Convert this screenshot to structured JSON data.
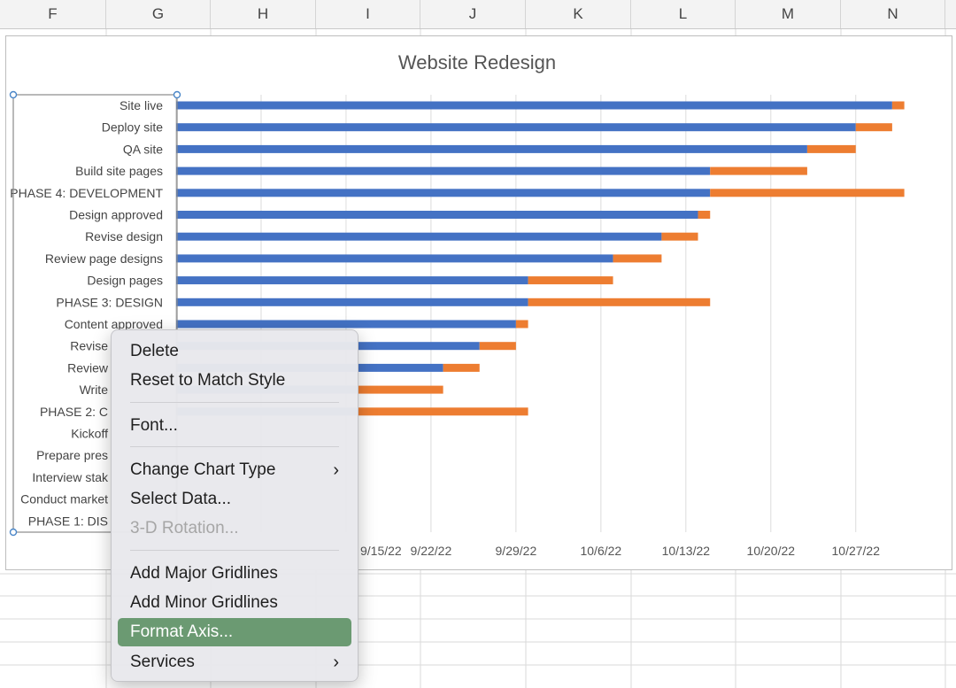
{
  "columns": [
    "F",
    "G",
    "H",
    "I",
    "J",
    "K",
    "L",
    "M",
    "N"
  ],
  "chart_data": {
    "type": "bar",
    "orientation": "horizontal-stacked-gantt",
    "title": "Website Redesign",
    "x_axis": {
      "min": "9/1/22",
      "tick_interval_days": 7,
      "tick_labels": [
        "9/15/22",
        "9/22/22",
        "9/29/22",
        "10/6/22",
        "10/13/22",
        "10/20/22",
        "10/27/22"
      ],
      "grid": true
    },
    "colors": {
      "start": "#4472c4",
      "duration": "#ed7d31"
    },
    "tasks": [
      {
        "label": "Site live",
        "start": "10/30/22",
        "duration": 1
      },
      {
        "label": "Deploy site",
        "start": "10/27/22",
        "duration": 3
      },
      {
        "label": "QA site",
        "start": "10/23/22",
        "duration": 4
      },
      {
        "label": "Build site pages",
        "start": "10/15/22",
        "duration": 8
      },
      {
        "label": "PHASE 4: DEVELOPMENT",
        "start": "10/15/22",
        "duration": 16
      },
      {
        "label": "Design approved",
        "start": "10/14/22",
        "duration": 1
      },
      {
        "label": "Revise design",
        "start": "10/11/22",
        "duration": 3
      },
      {
        "label": "Review page designs",
        "start": "10/7/22",
        "duration": 4
      },
      {
        "label": "Design pages",
        "start": "9/30/22",
        "duration": 7
      },
      {
        "label": "PHASE 3: DESIGN",
        "start": "9/30/22",
        "duration": 15
      },
      {
        "label": "Content approved",
        "start": "9/29/22",
        "duration": 1
      },
      {
        "label": "Revise",
        "start": "9/26/22",
        "duration": 3
      },
      {
        "label": "Review",
        "start": "9/23/22",
        "duration": 3
      },
      {
        "label": "Write",
        "start": "9/16/22",
        "duration": 7
      },
      {
        "label": "PHASE 2: C",
        "start": "9/16/22",
        "duration": 14
      },
      {
        "label": "Kickoff",
        "start": null,
        "duration": null
      },
      {
        "label": "Prepare pres",
        "start": null,
        "duration": null
      },
      {
        "label": "Interview stak",
        "start": null,
        "duration": null
      },
      {
        "label": "Conduct market",
        "start": null,
        "duration": null
      },
      {
        "label": "PHASE 1: DIS",
        "start": null,
        "duration": null
      }
    ]
  },
  "context_menu": {
    "items": [
      {
        "label": "Delete"
      },
      {
        "label": "Reset to Match Style"
      },
      {
        "label": "Font..."
      },
      {
        "label": "Change Chart Type",
        "submenu": true
      },
      {
        "label": "Select Data..."
      },
      {
        "label": "3-D Rotation...",
        "disabled": true
      },
      {
        "label": "Add Major Gridlines"
      },
      {
        "label": "Add Minor Gridlines"
      },
      {
        "label": "Format Axis...",
        "highlighted": true
      },
      {
        "label": "Services",
        "submenu": true
      }
    ],
    "highlight_color": "#6b9a72"
  }
}
